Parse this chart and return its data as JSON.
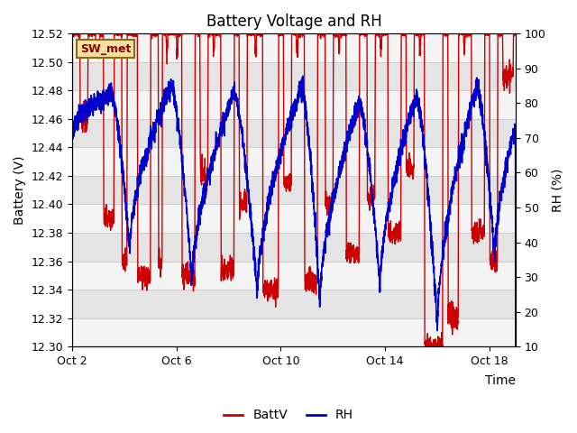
{
  "title": "Battery Voltage and RH",
  "xlabel": "Time",
  "ylabel_left": "Battery (V)",
  "ylabel_right": "RH (%)",
  "annotation": "SW_met",
  "legend_entries": [
    "BattV",
    "RH"
  ],
  "legend_colors": [
    "#cc0000",
    "#0000cc"
  ],
  "batt_ylim": [
    12.3,
    12.52
  ],
  "rh_ylim": [
    10,
    100
  ],
  "batt_yticks": [
    12.3,
    12.32,
    12.34,
    12.36,
    12.38,
    12.4,
    12.42,
    12.44,
    12.46,
    12.48,
    12.5,
    12.52
  ],
  "rh_yticks": [
    10,
    20,
    30,
    40,
    50,
    60,
    70,
    80,
    90,
    100
  ],
  "xtick_labels": [
    "Oct 2",
    "Oct 6",
    "Oct 10",
    "Oct 14",
    "Oct 18"
  ],
  "xtick_positions": [
    0,
    4,
    8,
    12,
    16
  ],
  "grid_color": "#cccccc",
  "bg_color": "#ffffff",
  "plot_bg_light": "#f4f4f4",
  "plot_bg_dark": "#e4e4e4",
  "batt_color": "#cc0000",
  "rh_color": "#0000cc",
  "title_fontsize": 12,
  "axis_fontsize": 10,
  "tick_fontsize": 9,
  "xlim": [
    0,
    17
  ]
}
